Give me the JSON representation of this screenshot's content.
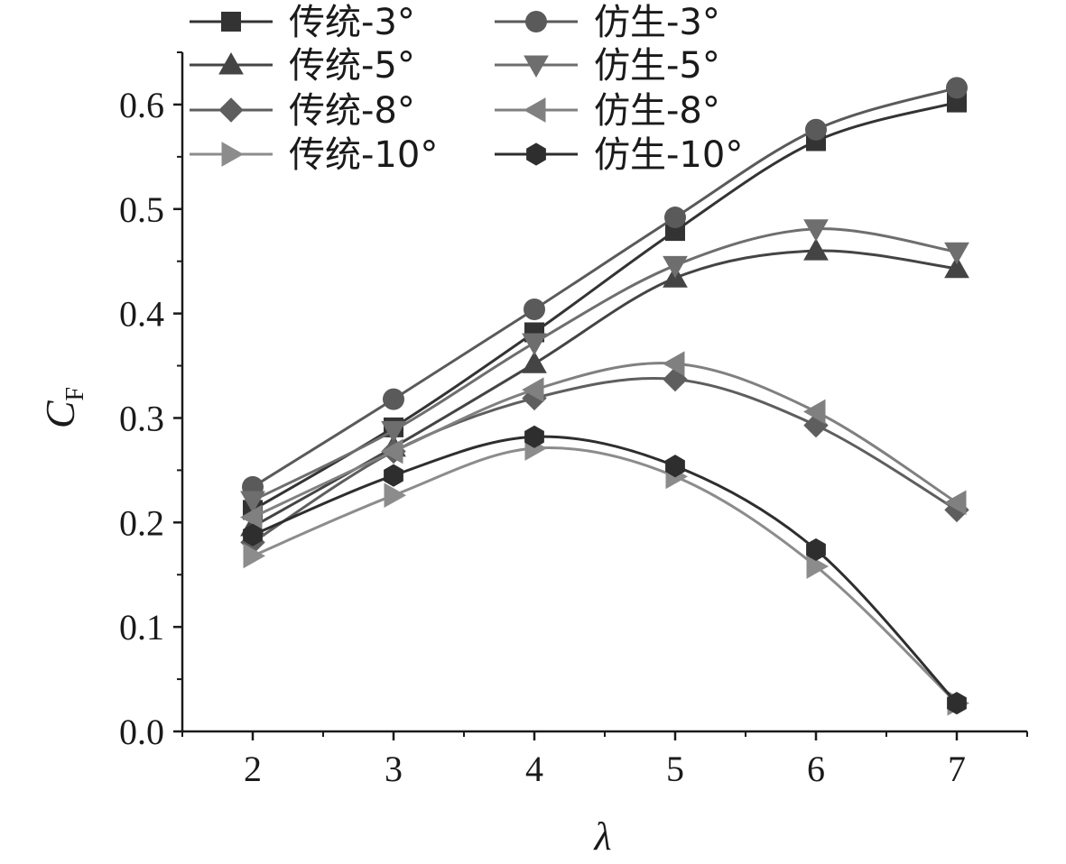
{
  "chart_data": {
    "type": "line",
    "xlabel": "λ",
    "ylabel_main": "C",
    "ylabel_sub": "F",
    "x": [
      2,
      3,
      4,
      5,
      6,
      7
    ],
    "xlim": [
      1.5,
      7.5
    ],
    "ylim": [
      0.0,
      0.65
    ],
    "x_ticks": [
      "2",
      "3",
      "4",
      "5",
      "6",
      "7"
    ],
    "y_ticks": [
      "0.0",
      "0.1",
      "0.2",
      "0.3",
      "0.4",
      "0.5",
      "0.6"
    ],
    "legend_position": "top-left",
    "series": [
      {
        "name": "传统-3°",
        "marker": "square",
        "color": "#333333",
        "values": [
          0.212,
          0.291,
          0.382,
          0.479,
          0.565,
          0.602
        ]
      },
      {
        "name": "仿生-3°",
        "marker": "circle",
        "color": "#5a5a5a",
        "values": [
          0.234,
          0.318,
          0.404,
          0.492,
          0.576,
          0.616
        ]
      },
      {
        "name": "传统-5°",
        "marker": "triangle-up",
        "color": "#444444",
        "values": [
          0.196,
          0.272,
          0.352,
          0.434,
          0.46,
          0.443
        ]
      },
      {
        "name": "仿生-5°",
        "marker": "triangle-down",
        "color": "#6e6e6e",
        "values": [
          0.221,
          0.288,
          0.372,
          0.446,
          0.481,
          0.459
        ]
      },
      {
        "name": "传统-8°",
        "marker": "diamond",
        "color": "#5e5e5e",
        "values": [
          0.181,
          0.268,
          0.319,
          0.337,
          0.293,
          0.212
        ]
      },
      {
        "name": "仿生-8°",
        "marker": "triangle-left",
        "color": "#808080",
        "values": [
          0.205,
          0.268,
          0.327,
          0.352,
          0.306,
          0.219
        ]
      },
      {
        "name": "传统-10°",
        "marker": "triangle-right",
        "color": "#8c8c8c",
        "values": [
          0.168,
          0.226,
          0.271,
          0.244,
          0.158,
          0.027
        ]
      },
      {
        "name": "仿生-10°",
        "marker": "hexagon",
        "color": "#2e2e2e",
        "values": [
          0.188,
          0.245,
          0.282,
          0.254,
          0.174,
          0.027
        ]
      }
    ]
  }
}
